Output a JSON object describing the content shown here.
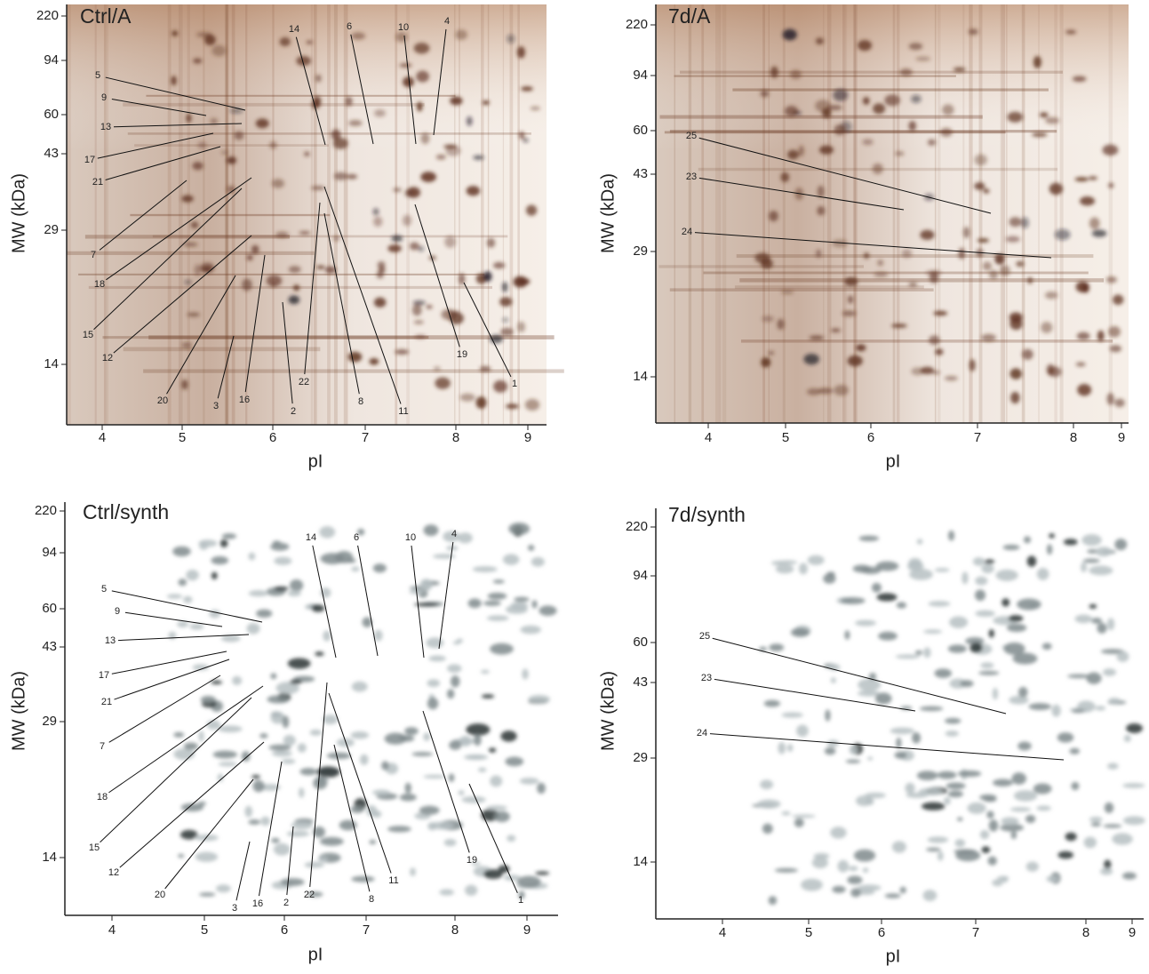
{
  "panels": [
    {
      "title": "Ctrl/A",
      "x_label": "pI",
      "y_label": "MW (kDa)",
      "xticks": [
        4,
        5,
        6,
        7,
        8,
        9
      ],
      "yticks": [
        220,
        94,
        60,
        43,
        29,
        14
      ],
      "annotations": [
        "5",
        "9",
        "13",
        "17",
        "21",
        "7",
        "18",
        "15",
        "12",
        "20",
        "3",
        "16",
        "2",
        "22",
        "8",
        "11",
        "19",
        "1",
        "14",
        "6",
        "10",
        "4"
      ]
    },
    {
      "title": "7d/A",
      "x_label": "pI",
      "y_label": "MW (kDa)",
      "xticks": [
        4,
        5,
        6,
        7,
        8,
        9
      ],
      "yticks": [
        220,
        94,
        60,
        43,
        29,
        14
      ],
      "annotations": [
        "25",
        "23",
        "24"
      ]
    },
    {
      "title": "Ctrl/synth",
      "x_label": "pI",
      "y_label": "MW (kDa)",
      "xticks": [
        4,
        5,
        6,
        7,
        8,
        9
      ],
      "yticks": [
        220,
        94,
        60,
        43,
        29,
        14
      ],
      "annotations": [
        "5",
        "9",
        "13",
        "17",
        "21",
        "7",
        "18",
        "15",
        "12",
        "20",
        "3",
        "16",
        "2",
        "22",
        "8",
        "11",
        "19",
        "1",
        "14",
        "6",
        "10",
        "4"
      ]
    },
    {
      "title": "7d/synth",
      "x_label": "pI",
      "y_label": "MW (kDa)",
      "xticks": [
        4,
        5,
        6,
        7,
        8,
        9
      ],
      "yticks": [
        220,
        94,
        60,
        43,
        29,
        14
      ],
      "annotations": [
        "25",
        "23",
        "24"
      ]
    }
  ]
}
